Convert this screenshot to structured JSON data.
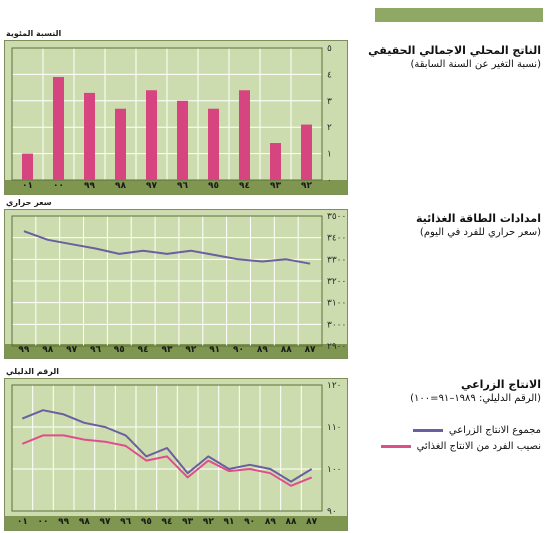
{
  "colors": {
    "panel_bg": "#cddcae",
    "strip": "#7f9650",
    "grid": "#ffffff",
    "bar": "#d6457f",
    "line_total": "#6a5fa0",
    "line_food": "#df4e8c",
    "band": "#8fa864"
  },
  "sections": {
    "gdp": {
      "title": "الناتج المحلي الاجمالي الحقيقي",
      "subtitle": "(نسبة التغير عن السنة السابقة)",
      "unit_label": "النسبة المئوية"
    },
    "energy": {
      "title": "امدادات الطاقة الغذائية",
      "subtitle": "(سعر حراري للفرد في اليوم)",
      "unit_label": "سعر حراري"
    },
    "agri": {
      "title": "الانتاج الزراعي",
      "subtitle": "(الرقم الدليلي: ١٩٨٩–٩١=١٠٠)",
      "unit_label": "الرقم الدليلي",
      "legend": [
        {
          "label": "مجموع الانتاج الزراعي",
          "color": "#6a5fa0"
        },
        {
          "label": "نصيب الفرد من الانتاج الغذائي",
          "color": "#df4e8c"
        }
      ]
    }
  },
  "chart_data": [
    {
      "type": "bar",
      "categories": [
        "٠١",
        "٠٠",
        "٩٩",
        "٩٨",
        "٩٧",
        "٩٦",
        "٩٥",
        "٩٤",
        "٩٣",
        "٩٢"
      ],
      "values": [
        1.0,
        3.9,
        3.3,
        2.7,
        3.4,
        3.0,
        2.7,
        3.4,
        1.4,
        2.1
      ],
      "ylim": [
        0,
        5
      ],
      "yticks": [
        "٠",
        "١",
        "٢",
        "٣",
        "٤",
        "٥"
      ],
      "ylabel": "النسبة المئوية",
      "grid": true
    },
    {
      "type": "line",
      "categories": [
        "٩٩",
        "٩٨",
        "٩٧",
        "٩٦",
        "٩٥",
        "٩٤",
        "٩٣",
        "٩٢",
        "٩١",
        "٩٠",
        "٨٩",
        "٨٨",
        "٨٧"
      ],
      "series": [
        {
          "values": [
            3430,
            3390,
            3370,
            3350,
            3325,
            3340,
            3325,
            3340,
            3320,
            3300,
            3290,
            3300,
            3280
          ]
        }
      ],
      "ylim": [
        2900,
        3500
      ],
      "yticks": [
        "٢٩٠٠",
        "٣٠٠٠",
        "٣١٠٠",
        "٣٢٠٠",
        "٣٣٠٠",
        "٣٤٠٠",
        "٣٥٠٠"
      ],
      "ylabel": "سعر حراري",
      "grid": true
    },
    {
      "type": "line",
      "categories": [
        "٠١",
        "٠٠",
        "٩٩",
        "٩٨",
        "٩٧",
        "٩٦",
        "٩٥",
        "٩٤",
        "٩٣",
        "٩٢",
        "٩١",
        "٩٠",
        "٨٩",
        "٨٨",
        "٨٧"
      ],
      "series": [
        {
          "name": "مجموع الانتاج الزراعي",
          "values": [
            112,
            114,
            113,
            111,
            110,
            108,
            103,
            105,
            99,
            103,
            100,
            101,
            100,
            97,
            100
          ]
        },
        {
          "name": "نصيب الفرد من الانتاج الغذائي",
          "values": [
            106,
            108,
            108,
            107,
            106.5,
            105.5,
            102,
            103,
            98,
            102,
            99.5,
            100,
            99,
            96,
            98
          ]
        }
      ],
      "ylim": [
        90,
        120
      ],
      "yticks": [
        "٩٠",
        "١٠٠",
        "١١٠",
        "١٢٠"
      ],
      "ylabel": "الرقم الدليلي",
      "grid": true
    }
  ]
}
